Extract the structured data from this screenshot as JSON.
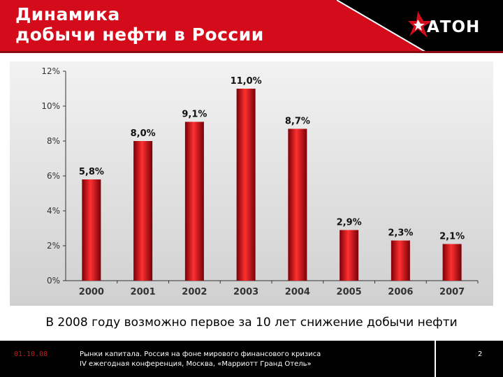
{
  "header": {
    "title_line1": "Динамика",
    "title_line2": "добычи нефти в России",
    "logo_text": "АТОН",
    "colors": {
      "brand_red": "#d40b1a",
      "black": "#000000",
      "white": "#ffffff"
    }
  },
  "chart_data": {
    "type": "bar",
    "title": "",
    "xlabel": "",
    "ylabel": "",
    "categories": [
      "2000",
      "2001",
      "2002",
      "2003",
      "2004",
      "2005",
      "2006",
      "2007"
    ],
    "values": [
      5.8,
      8.0,
      9.1,
      11.0,
      8.7,
      2.9,
      2.3,
      2.1
    ],
    "value_labels": [
      "5,8%",
      "8,0%",
      "9,1%",
      "11,0%",
      "8,7%",
      "2,9%",
      "2,3%",
      "2,1%"
    ],
    "ylim": [
      0,
      12
    ],
    "yticks": [
      0,
      2,
      4,
      6,
      8,
      10,
      12
    ],
    "ytick_labels": [
      "0%",
      "2%",
      "4%",
      "6%",
      "8%",
      "10%",
      "12%"
    ],
    "grid": false,
    "legend": "none",
    "bar_color": "#e0141e"
  },
  "subtitle": "В 2008 году возможно первое за 10 лет снижение добычи нефти",
  "footer": {
    "date": "01.10.08",
    "line1": "Рынки капитала. Россия на фоне мирового финансового кризиса",
    "line2": "IV ежегодная конференция, Москва, «Марриотт Гранд Отель»",
    "page": "2"
  }
}
